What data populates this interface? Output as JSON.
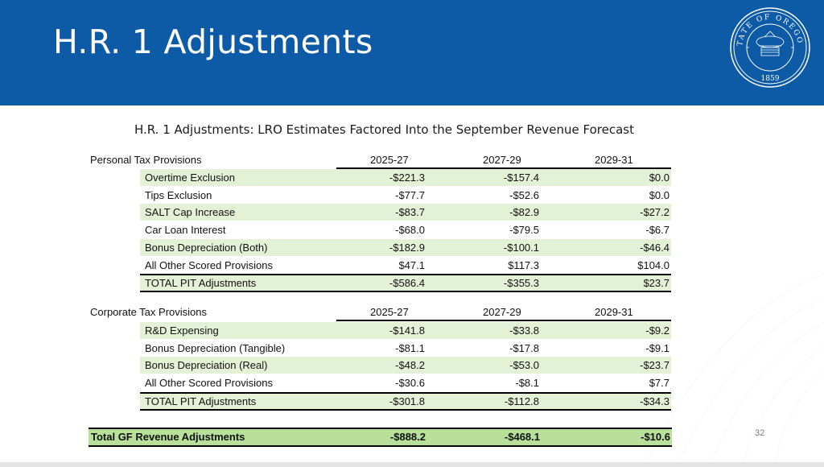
{
  "slide": {
    "title": "H.R. 1 Adjustments",
    "page_number": "32",
    "seal": {
      "top_text": "STATE OF OREGON",
      "year": "1859"
    },
    "colors": {
      "header": "#0d5aa7",
      "row_shade": "#e3f2d7",
      "total_shade": "#b8e09a"
    }
  },
  "table": {
    "title": "H.R. 1 Adjustments: LRO Estimates Factored Into the September Revenue Forecast",
    "personal": {
      "heading": "Personal Tax Provisions",
      "years": [
        "2025-27",
        "2027-29",
        "2029-31"
      ],
      "rows": [
        {
          "label": "Overtime Exclusion",
          "values": [
            "-$221.3",
            "-$157.4",
            "$0.0"
          ]
        },
        {
          "label": "Tips Exclusion",
          "values": [
            "-$77.7",
            "-$52.6",
            "$0.0"
          ]
        },
        {
          "label": "SALT Cap Increase",
          "values": [
            "-$83.7",
            "-$82.9",
            "-$27.2"
          ]
        },
        {
          "label": "Car Loan Interest",
          "values": [
            "-$68.0",
            "-$79.5",
            "-$6.7"
          ]
        },
        {
          "label": "Bonus Depreciation (Both)",
          "values": [
            "-$182.9",
            "-$100.1",
            "-$46.4"
          ]
        },
        {
          "label": "All Other Scored Provisions",
          "values": [
            "$47.1",
            "$117.3",
            "$104.0"
          ]
        }
      ],
      "total": {
        "label": "TOTAL PIT Adjustments",
        "values": [
          "-$586.4",
          "-$355.3",
          "$23.7"
        ]
      }
    },
    "corporate": {
      "heading": "Corporate Tax Provisions",
      "years": [
        "2025-27",
        "2027-29",
        "2029-31"
      ],
      "rows": [
        {
          "label": "R&D Expensing",
          "values": [
            "-$141.8",
            "-$33.8",
            "-$9.2"
          ]
        },
        {
          "label": "Bonus Depreciation (Tangible)",
          "values": [
            "-$81.1",
            "-$17.8",
            "-$9.1"
          ]
        },
        {
          "label": "Bonus Depreciation (Real)",
          "values": [
            "-$48.2",
            "-$53.0",
            "-$23.7"
          ]
        },
        {
          "label": "All Other Scored Provisions",
          "values": [
            "-$30.6",
            "-$8.1",
            "$7.7"
          ]
        }
      ],
      "total": {
        "label": "TOTAL PIT Adjustments",
        "values": [
          "-$301.8",
          "-$112.8",
          "-$34.3"
        ]
      }
    },
    "grand_total": {
      "label": "Total GF Revenue Adjustments",
      "values": [
        "-$888.2",
        "-$468.1",
        "-$10.6"
      ]
    }
  }
}
